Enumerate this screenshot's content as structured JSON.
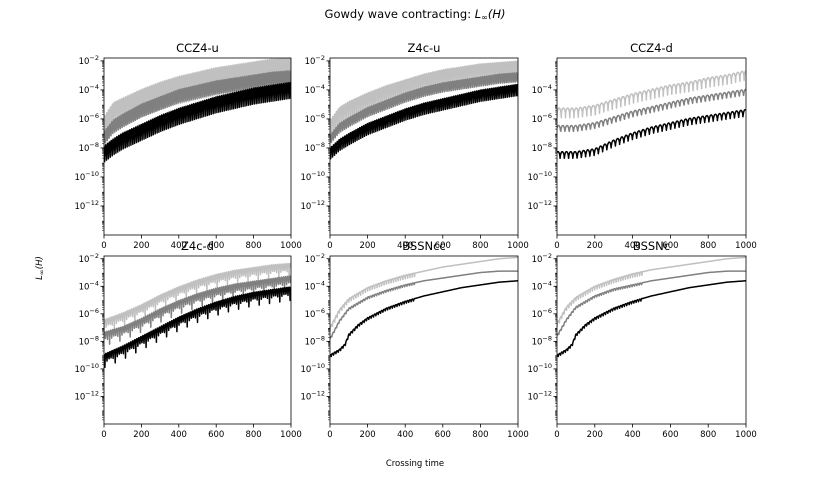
{
  "figure": {
    "title_prefix": "Gowdy wave contracting: ",
    "title_math": "L",
    "title_sub": "∞",
    "title_suffix": "(H)",
    "xlabel": "Crossing time",
    "ylabel_math": "L",
    "ylabel_sub": "∞",
    "ylabel_suffix": "(H)"
  },
  "colors": {
    "light": "#c0c0c0",
    "mid": "#808080",
    "dark": "#000000"
  },
  "chart_data": [
    {
      "type": "line",
      "title": "CCZ4-u",
      "xlim": [
        0,
        1000
      ],
      "yscale": "log",
      "ylim_exp": [
        -14,
        -1.8
      ],
      "xticks": [
        0,
        200,
        400,
        600,
        800,
        1000
      ],
      "yticks_exp": [
        -12,
        -10,
        -8,
        -6,
        -4,
        -2
      ],
      "oscillation": 0.85,
      "period": 20,
      "series": [
        {
          "color": "light",
          "x": [
            0,
            50,
            100,
            200,
            300,
            400,
            500,
            600,
            700,
            800,
            900,
            1000
          ],
          "y_exp": [
            -6.0,
            -5.0,
            -4.7,
            -4.1,
            -3.6,
            -3.2,
            -2.9,
            -2.6,
            -2.4,
            -2.2,
            -2.0,
            -1.9
          ]
        },
        {
          "color": "mid",
          "x": [
            0,
            50,
            100,
            200,
            300,
            400,
            500,
            600,
            700,
            800,
            900,
            1000
          ],
          "y_exp": [
            -7.0,
            -6.2,
            -5.8,
            -5.1,
            -4.6,
            -4.1,
            -3.8,
            -3.5,
            -3.3,
            -3.1,
            -2.9,
            -2.8
          ]
        },
        {
          "color": "dark",
          "x": [
            0,
            50,
            100,
            200,
            300,
            400,
            500,
            600,
            700,
            800,
            900,
            1000
          ],
          "y_exp": [
            -8.0,
            -7.5,
            -7.1,
            -6.5,
            -5.9,
            -5.4,
            -5.0,
            -4.6,
            -4.3,
            -4.0,
            -3.8,
            -3.6
          ]
        }
      ]
    },
    {
      "type": "line",
      "title": "Z4c-u",
      "xlim": [
        0,
        1000
      ],
      "yscale": "log",
      "ylim_exp": [
        -14,
        -1.8
      ],
      "xticks": [
        0,
        200,
        400,
        600,
        800,
        1000
      ],
      "yticks_exp": [
        -12,
        -10,
        -8,
        -6,
        -4,
        -2
      ],
      "oscillation": 0.6,
      "period": 20,
      "series": [
        {
          "color": "light",
          "x": [
            0,
            50,
            100,
            200,
            300,
            400,
            500,
            600,
            700,
            800,
            900,
            1000
          ],
          "y_exp": [
            -6.2,
            -5.3,
            -4.9,
            -4.3,
            -3.8,
            -3.4,
            -3.0,
            -2.7,
            -2.5,
            -2.3,
            -2.2,
            -2.1
          ]
        },
        {
          "color": "mid",
          "x": [
            0,
            50,
            100,
            200,
            300,
            400,
            500,
            600,
            700,
            800,
            900,
            1000
          ],
          "y_exp": [
            -7.2,
            -6.4,
            -6.0,
            -5.3,
            -4.8,
            -4.3,
            -3.9,
            -3.6,
            -3.4,
            -3.2,
            -3.0,
            -2.9
          ]
        },
        {
          "color": "dark",
          "x": [
            0,
            50,
            100,
            200,
            300,
            400,
            500,
            600,
            700,
            800,
            900,
            1000
          ],
          "y_exp": [
            -8.1,
            -7.5,
            -7.1,
            -6.4,
            -5.9,
            -5.4,
            -5.0,
            -4.7,
            -4.4,
            -4.1,
            -3.9,
            -3.7
          ]
        }
      ]
    },
    {
      "type": "line",
      "title": "CCZ4-d",
      "xlim": [
        0,
        1000
      ],
      "yscale": "log",
      "ylim_exp": [
        -14,
        -1.8
      ],
      "xticks": [
        0,
        200,
        400,
        600,
        800,
        1000
      ],
      "yticks_exp": [
        -12,
        -10,
        -8,
        -6,
        -4
      ],
      "oscillation": 0.3,
      "period": 45,
      "series": [
        {
          "color": "light",
          "x": [
            0,
            100,
            200,
            300,
            400,
            500,
            600,
            700,
            800,
            900,
            1000
          ],
          "y_exp": [
            -5.3,
            -5.3,
            -5.1,
            -4.7,
            -4.3,
            -4.0,
            -3.7,
            -3.5,
            -3.2,
            -3.0,
            -2.7
          ]
        },
        {
          "color": "mid",
          "x": [
            0,
            100,
            200,
            300,
            400,
            500,
            600,
            700,
            800,
            900,
            1000
          ],
          "y_exp": [
            -6.5,
            -6.5,
            -6.3,
            -5.9,
            -5.5,
            -5.2,
            -4.9,
            -4.6,
            -4.4,
            -4.2,
            -4.0
          ]
        },
        {
          "color": "dark",
          "x": [
            0,
            100,
            200,
            300,
            400,
            500,
            600,
            700,
            800,
            900,
            1000
          ],
          "y_exp": [
            -8.3,
            -8.3,
            -8.1,
            -7.5,
            -7.0,
            -6.6,
            -6.3,
            -6.0,
            -5.8,
            -5.6,
            -5.4
          ]
        }
      ]
    },
    {
      "type": "line",
      "title": "Z4c-d",
      "xlim": [
        0,
        1000
      ],
      "yscale": "log",
      "ylim_exp": [
        -14,
        -1.8
      ],
      "xticks": [
        0,
        200,
        400,
        600,
        800,
        1000
      ],
      "yticks_exp": [
        -12,
        -10,
        -8,
        -6,
        -4,
        -2
      ],
      "oscillation": 0.45,
      "period": 22,
      "series": [
        {
          "color": "light",
          "x": [
            0,
            100,
            200,
            300,
            400,
            500,
            600,
            700,
            800,
            900,
            1000
          ],
          "y_exp": [
            -6.5,
            -6.0,
            -5.4,
            -4.7,
            -4.1,
            -3.6,
            -3.2,
            -2.9,
            -2.7,
            -2.5,
            -2.4
          ]
        },
        {
          "color": "mid",
          "x": [
            0,
            100,
            200,
            300,
            400,
            500,
            600,
            700,
            800,
            900,
            1000
          ],
          "y_exp": [
            -7.4,
            -7.0,
            -6.4,
            -5.7,
            -5.1,
            -4.6,
            -4.2,
            -3.9,
            -3.7,
            -3.5,
            -3.3
          ]
        },
        {
          "color": "dark",
          "x": [
            0,
            100,
            200,
            300,
            400,
            500,
            600,
            700,
            800,
            900,
            1000
          ],
          "y_exp": [
            -9.0,
            -8.4,
            -7.7,
            -7.0,
            -6.3,
            -5.7,
            -5.2,
            -4.8,
            -4.5,
            -4.3,
            -4.1
          ]
        }
      ]
    },
    {
      "type": "line",
      "title": "BSSNcc",
      "xlim": [
        0,
        1000
      ],
      "yscale": "log",
      "ylim_exp": [
        -14,
        -1.8
      ],
      "xticks": [
        0,
        200,
        400,
        600,
        800,
        1000
      ],
      "yticks_exp": [
        -12,
        -10,
        -8,
        -6,
        -4,
        -2
      ],
      "oscillation": 0.12,
      "period": 25,
      "osc_until": 450,
      "series": [
        {
          "color": "light",
          "x": [
            0,
            50,
            100,
            200,
            300,
            400,
            500,
            600,
            700,
            800,
            900,
            1000
          ],
          "y_exp": [
            -7.0,
            -5.7,
            -4.9,
            -4.1,
            -3.6,
            -3.2,
            -2.9,
            -2.6,
            -2.4,
            -2.2,
            -2.0,
            -1.9
          ]
        },
        {
          "color": "mid",
          "x": [
            0,
            50,
            100,
            200,
            300,
            400,
            500,
            600,
            700,
            800,
            900,
            1000
          ],
          "y_exp": [
            -7.8,
            -6.5,
            -5.6,
            -4.8,
            -4.3,
            -3.9,
            -3.6,
            -3.4,
            -3.2,
            -3.0,
            -2.9,
            -2.9
          ]
        },
        {
          "color": "dark",
          "x": [
            0,
            50,
            80,
            100,
            150,
            200,
            300,
            400,
            500,
            600,
            700,
            800,
            900,
            1000
          ],
          "y_exp": [
            -9.0,
            -8.6,
            -8.2,
            -7.5,
            -6.8,
            -6.3,
            -5.6,
            -5.1,
            -4.7,
            -4.4,
            -4.1,
            -3.9,
            -3.7,
            -3.6
          ]
        }
      ]
    },
    {
      "type": "line",
      "title": "BSSNc",
      "xlim": [
        0,
        1000
      ],
      "yscale": "log",
      "ylim_exp": [
        -14,
        -1.8
      ],
      "xticks": [
        0,
        200,
        400,
        600,
        800,
        1000
      ],
      "yticks_exp": [
        -12,
        -10,
        -8,
        -6,
        -4,
        -2
      ],
      "oscillation": 0.12,
      "period": 25,
      "osc_until": 450,
      "series": [
        {
          "color": "light",
          "x": [
            0,
            50,
            100,
            200,
            300,
            400,
            500,
            600,
            700,
            800,
            900,
            1000
          ],
          "y_exp": [
            -6.7,
            -5.5,
            -4.8,
            -4.0,
            -3.5,
            -3.1,
            -2.8,
            -2.6,
            -2.4,
            -2.2,
            -2.0,
            -1.9
          ]
        },
        {
          "color": "mid",
          "x": [
            0,
            50,
            100,
            200,
            300,
            400,
            500,
            600,
            700,
            800,
            900,
            1000
          ],
          "y_exp": [
            -7.6,
            -6.4,
            -5.5,
            -4.7,
            -4.2,
            -3.9,
            -3.6,
            -3.4,
            -3.2,
            -3.0,
            -2.9,
            -2.9
          ]
        },
        {
          "color": "dark",
          "x": [
            0,
            50,
            80,
            100,
            150,
            200,
            300,
            400,
            500,
            600,
            700,
            800,
            900,
            1000
          ],
          "y_exp": [
            -9.0,
            -8.6,
            -8.2,
            -7.5,
            -6.8,
            -6.3,
            -5.6,
            -5.1,
            -4.7,
            -4.4,
            -4.1,
            -3.9,
            -3.7,
            -3.6
          ]
        }
      ]
    }
  ]
}
